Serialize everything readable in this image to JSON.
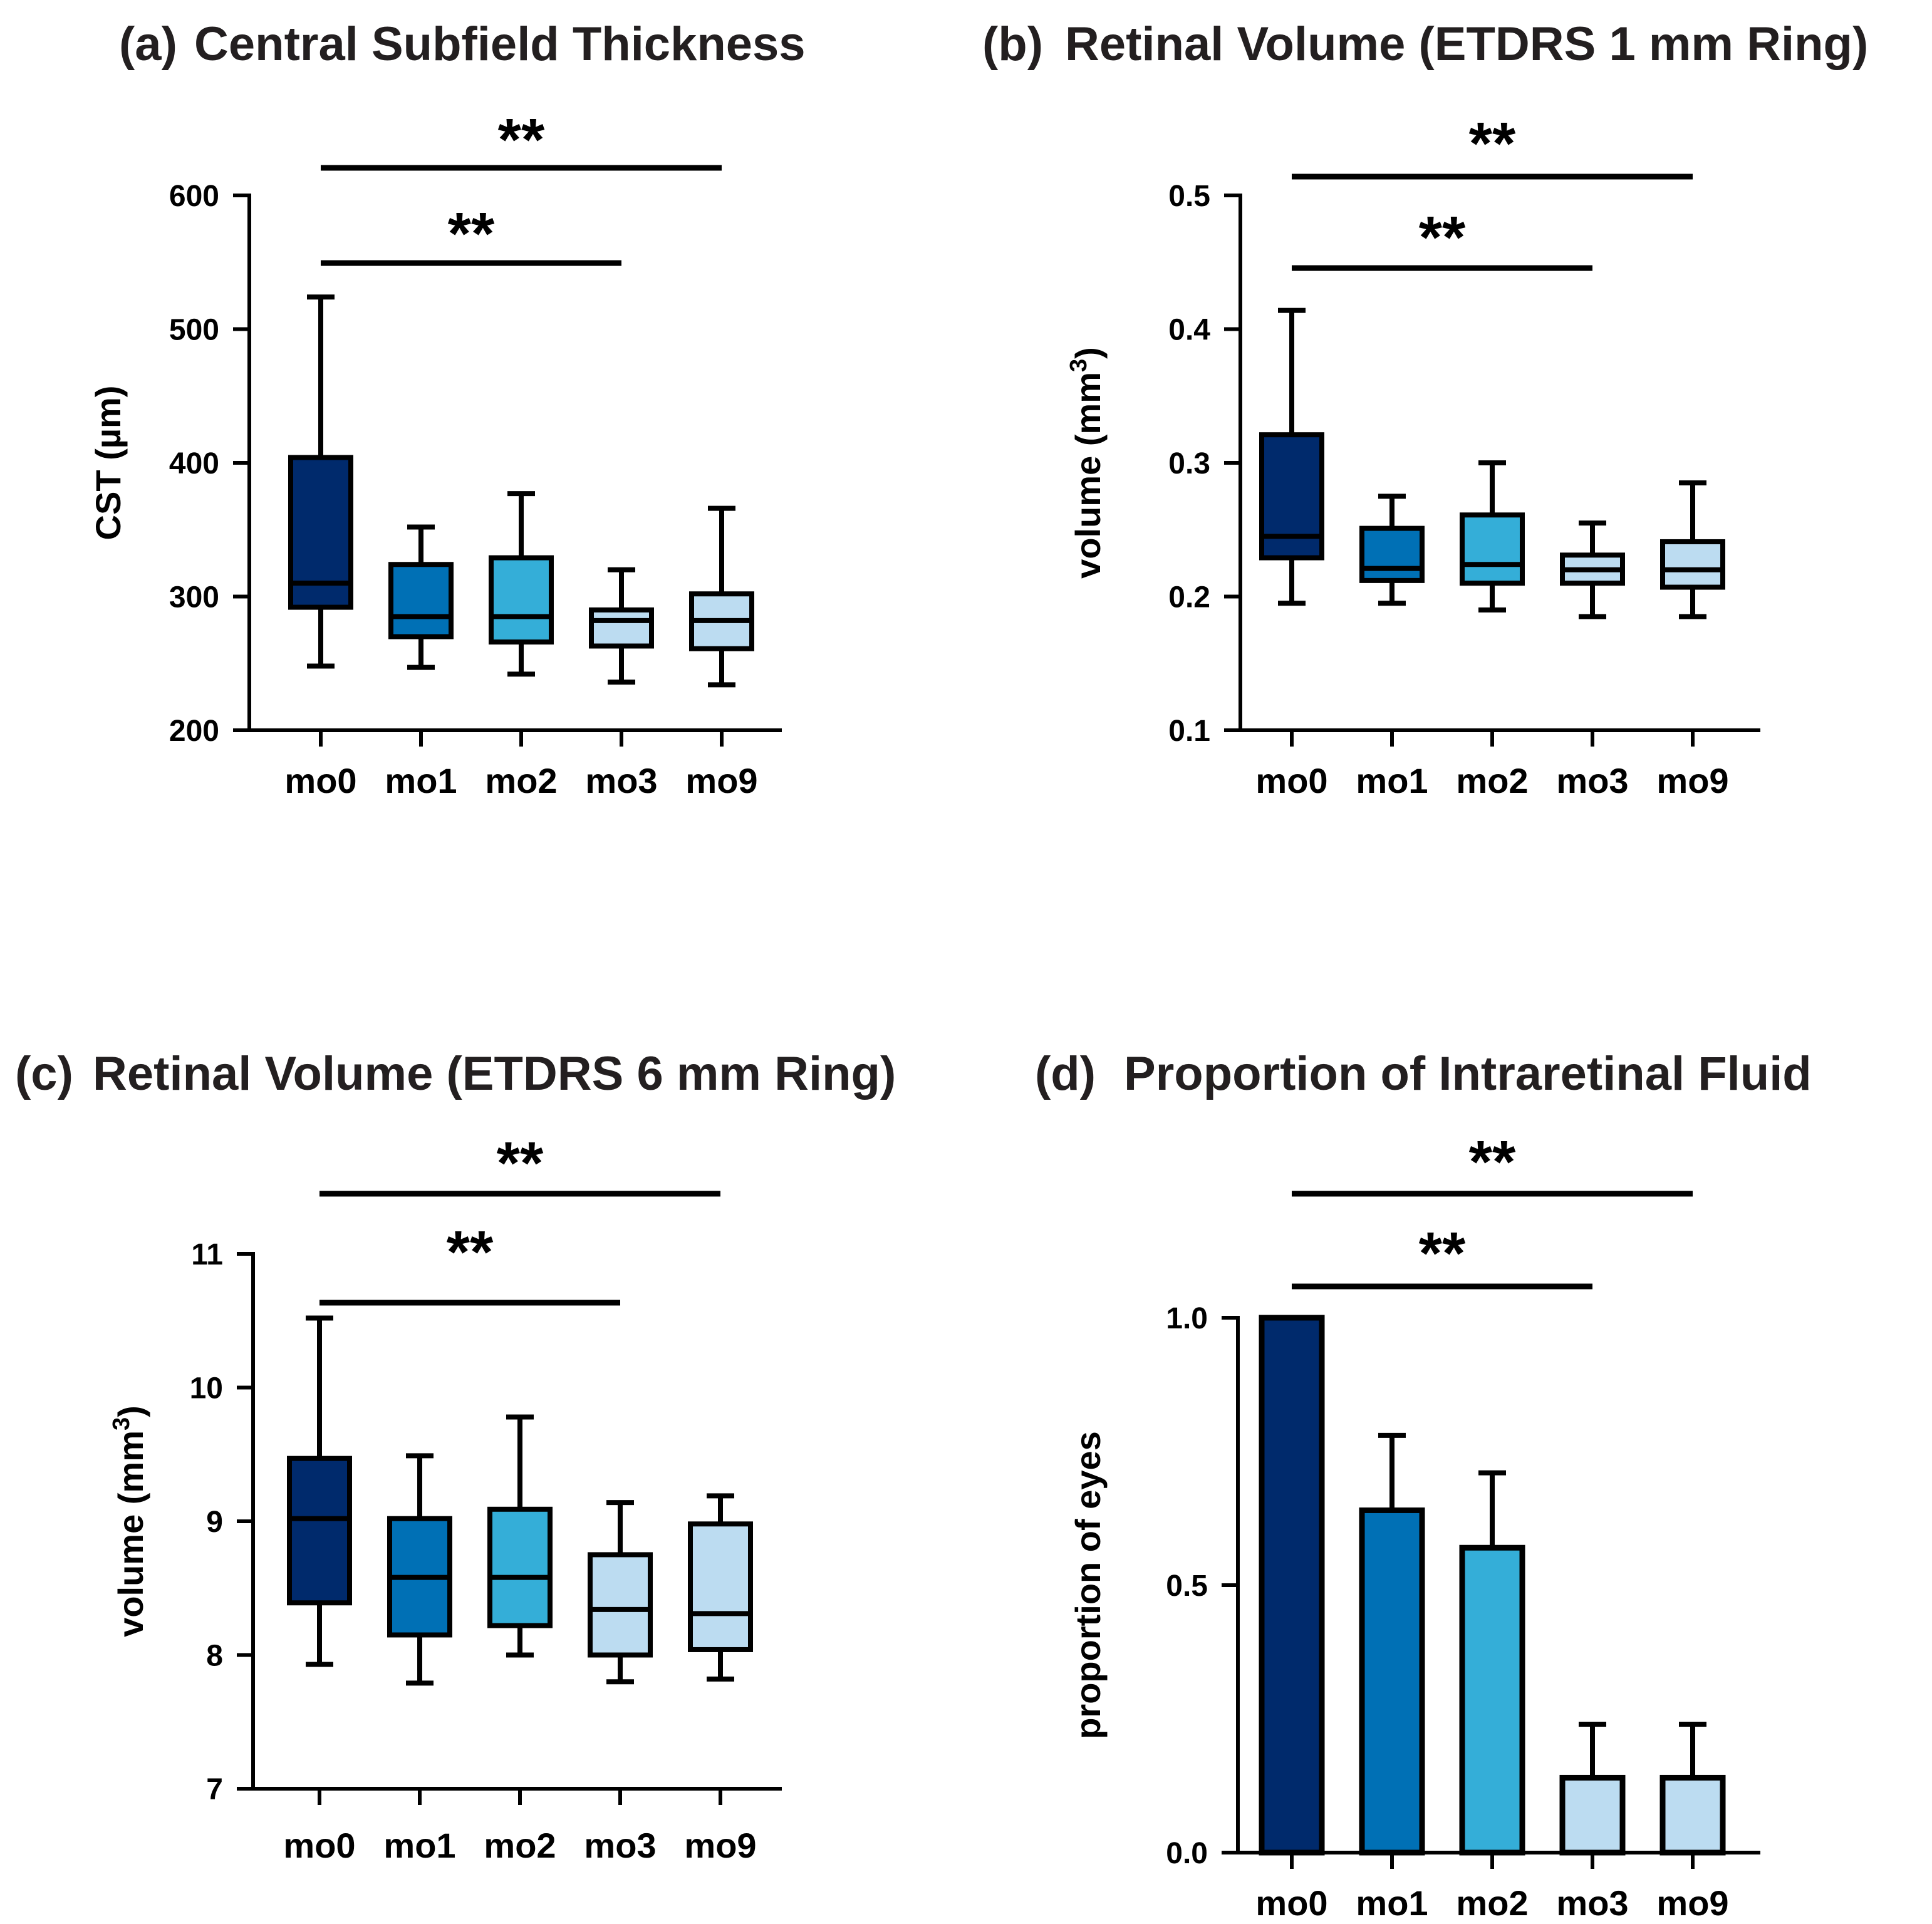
{
  "colors": {
    "mo0": "#002a6c",
    "mo1": "#0070b5",
    "mo2": "#34aed8",
    "mo3": "#bcdcf1",
    "mo9": "#bcdcf1",
    "stroke": "#000000"
  },
  "chart_data": [
    {
      "type": "box",
      "letter": "(a)",
      "title": "Central Subfield Thickness",
      "ylabel": "CST (µm)",
      "ylabel_sup": "",
      "ylabel_end": "",
      "ylim": [
        200,
        600
      ],
      "yticks": [
        200,
        300,
        400,
        500,
        600
      ],
      "ytick_labels": [
        "200",
        "300",
        "400",
        "500",
        "600"
      ],
      "categories": [
        "mo0",
        "mo1",
        "mo2",
        "mo3",
        "mo9"
      ],
      "boxes": [
        {
          "min": 248,
          "q1": 292,
          "median": 310,
          "q3": 404,
          "max": 524
        },
        {
          "min": 247,
          "q1": 270,
          "median": 285,
          "q3": 324,
          "max": 352
        },
        {
          "min": 242,
          "q1": 266,
          "median": 285,
          "q3": 329,
          "max": 377
        },
        {
          "min": 236,
          "q1": 263,
          "median": 282,
          "q3": 290,
          "max": 320
        },
        {
          "min": 234,
          "q1": 261,
          "median": 282,
          "q3": 302,
          "max": 366
        }
      ],
      "significance": [
        {
          "from": "mo0",
          "to": "mo9",
          "label": "**"
        },
        {
          "from": "mo0",
          "to": "mo3",
          "label": "**"
        }
      ]
    },
    {
      "type": "box",
      "letter": "(b)",
      "title": "Retinal Volume (ETDRS 1 mm Ring)",
      "ylabel": "volume (mm",
      "ylabel_sup": "3",
      "ylabel_end": ")",
      "ylim": [
        0.1,
        0.5
      ],
      "yticks": [
        0.1,
        0.2,
        0.3,
        0.4,
        0.5
      ],
      "ytick_labels": [
        "0.1",
        "0.2",
        "0.3",
        "0.4",
        "0.5"
      ],
      "categories": [
        "mo0",
        "mo1",
        "mo2",
        "mo3",
        "mo9"
      ],
      "boxes": [
        {
          "min": 0.195,
          "q1": 0.229,
          "median": 0.245,
          "q3": 0.321,
          "max": 0.414
        },
        {
          "min": 0.195,
          "q1": 0.212,
          "median": 0.221,
          "q3": 0.251,
          "max": 0.275
        },
        {
          "min": 0.19,
          "q1": 0.21,
          "median": 0.224,
          "q3": 0.261,
          "max": 0.3
        },
        {
          "min": 0.185,
          "q1": 0.21,
          "median": 0.22,
          "q3": 0.231,
          "max": 0.255
        },
        {
          "min": 0.185,
          "q1": 0.207,
          "median": 0.22,
          "q3": 0.241,
          "max": 0.285
        }
      ],
      "significance": [
        {
          "from": "mo0",
          "to": "mo9",
          "label": "**"
        },
        {
          "from": "mo0",
          "to": "mo3",
          "label": "**"
        }
      ]
    },
    {
      "type": "box",
      "letter": "(c)",
      "title": "Retinal Volume (ETDRS 6 mm Ring)",
      "ylabel": "volume (mm",
      "ylabel_sup": "3",
      "ylabel_end": ")",
      "ylim": [
        7,
        11
      ],
      "yticks": [
        7,
        8,
        9,
        10,
        11
      ],
      "ytick_labels": [
        "7",
        "8",
        "9",
        "10",
        "11"
      ],
      "categories": [
        "mo0",
        "mo1",
        "mo2",
        "mo3",
        "mo9"
      ],
      "boxes": [
        {
          "min": 7.93,
          "q1": 8.39,
          "median": 9.02,
          "q3": 9.47,
          "max": 10.52
        },
        {
          "min": 7.79,
          "q1": 8.15,
          "median": 8.58,
          "q3": 9.02,
          "max": 9.49
        },
        {
          "min": 8.0,
          "q1": 8.22,
          "median": 8.58,
          "q3": 9.09,
          "max": 9.78
        },
        {
          "min": 7.8,
          "q1": 8.0,
          "median": 8.34,
          "q3": 8.75,
          "max": 9.14
        },
        {
          "min": 7.82,
          "q1": 8.04,
          "median": 8.31,
          "q3": 8.98,
          "max": 9.19
        }
      ],
      "significance": [
        {
          "from": "mo0",
          "to": "mo9",
          "label": "**"
        },
        {
          "from": "mo0",
          "to": "mo3",
          "label": "**"
        }
      ]
    },
    {
      "type": "bar",
      "letter": "(d)",
      "title": "Proportion of Intraretinal Fluid",
      "ylabel": "proportion of eyes",
      "ylabel_sup": "",
      "ylabel_end": "",
      "ylim": [
        0,
        1.0
      ],
      "yticks": [
        0,
        0.5,
        1.0
      ],
      "ytick_labels": [
        "0.0",
        "0.5",
        "1.0"
      ],
      "categories": [
        "mo0",
        "mo1",
        "mo2",
        "mo3",
        "mo9"
      ],
      "values": [
        1.0,
        0.64,
        0.57,
        0.14,
        0.14
      ],
      "errors": [
        0.0,
        0.14,
        0.14,
        0.1,
        0.1
      ],
      "significance": [
        {
          "from": "mo0",
          "to": "mo9",
          "label": "**"
        },
        {
          "from": "mo0",
          "to": "mo3",
          "label": "**"
        }
      ]
    }
  ]
}
